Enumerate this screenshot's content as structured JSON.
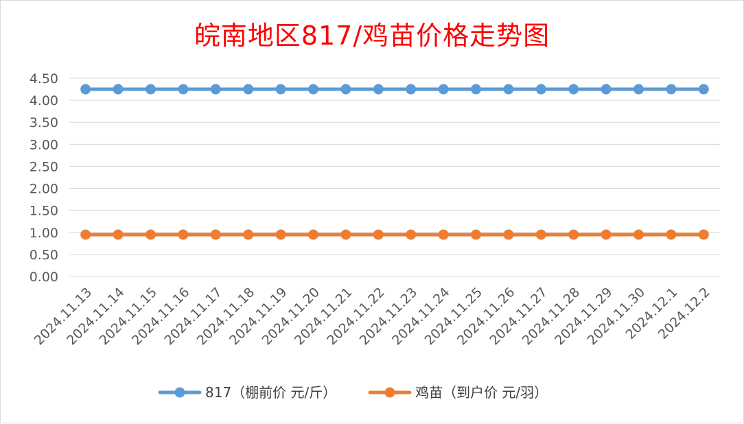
{
  "chart_data": {
    "type": "line",
    "title": "皖南地区817/鸡苗价格走势图",
    "categories": [
      "2024.11.13",
      "2024.11.14",
      "2024.11.15",
      "2024.11.16",
      "2024.11.17",
      "2024.11.18",
      "2024.11.19",
      "2024.11.20",
      "2024.11.21",
      "2024.11.22",
      "2024.11.23",
      "2024.11.24",
      "2024.11.25",
      "2024.11.26",
      "2024.11.27",
      "2024.11.28",
      "2024.11.29",
      "2024.11.30",
      "2024.12.1",
      "2024.12.2"
    ],
    "series": [
      {
        "name": "817（棚前价 元/斤）",
        "color": "#5b9bd5",
        "values": [
          4.25,
          4.25,
          4.25,
          4.25,
          4.25,
          4.25,
          4.25,
          4.25,
          4.25,
          4.25,
          4.25,
          4.25,
          4.25,
          4.25,
          4.25,
          4.25,
          4.25,
          4.25,
          4.25,
          4.25
        ]
      },
      {
        "name": "鸡苗（到户价 元/羽）",
        "color": "#ed7d31",
        "values": [
          0.95,
          0.95,
          0.95,
          0.95,
          0.95,
          0.95,
          0.95,
          0.95,
          0.95,
          0.95,
          0.95,
          0.95,
          0.95,
          0.95,
          0.95,
          0.95,
          0.95,
          0.95,
          0.95,
          0.95
        ]
      }
    ],
    "yticks": [
      "0.00",
      "0.50",
      "1.00",
      "1.50",
      "2.00",
      "2.50",
      "3.00",
      "3.50",
      "4.00",
      "4.50"
    ],
    "ylim": [
      0,
      4.5
    ],
    "grid": true,
    "legend": "bottom",
    "title_color": "#ff0000"
  }
}
